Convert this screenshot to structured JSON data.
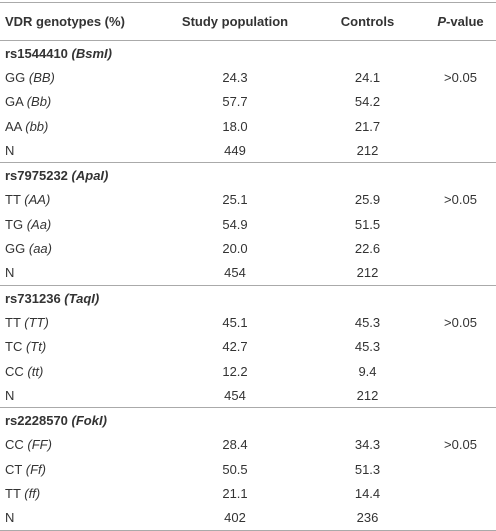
{
  "header": {
    "genotypes": "VDR genotypes (%)",
    "study": "Study population",
    "controls": "Controls",
    "p_italic": "P",
    "p_rest": "-value"
  },
  "groups": [
    {
      "snp": "rs1544410",
      "enzyme": "(BsmI)",
      "rows": [
        {
          "genotype": "GG",
          "alleles": "(BB)",
          "study": "24.3",
          "controls": "24.1",
          "p": ">0.05"
        },
        {
          "genotype": "GA",
          "alleles": "(Bb)",
          "study": "57.7",
          "controls": "54.2"
        },
        {
          "genotype": "AA",
          "alleles": "(bb)",
          "study": "18.0",
          "controls": "21.7"
        },
        {
          "genotype": "N",
          "study": "449",
          "controls": "212"
        }
      ]
    },
    {
      "snp": "rs7975232",
      "enzyme": "(ApaI)",
      "rows": [
        {
          "genotype": "TT",
          "alleles": "(AA)",
          "study": "25.1",
          "controls": "25.9",
          "p": ">0.05"
        },
        {
          "genotype": "TG",
          "alleles": "(Aa)",
          "study": "54.9",
          "controls": "51.5"
        },
        {
          "genotype": "GG",
          "alleles": "(aa)",
          "study": "20.0",
          "controls": "22.6"
        },
        {
          "genotype": "N",
          "study": "454",
          "controls": "212"
        }
      ]
    },
    {
      "snp": "rs731236",
      "enzyme": "(TaqI)",
      "rows": [
        {
          "genotype": "TT",
          "alleles": "(TT)",
          "study": "45.1",
          "controls": "45.3",
          "p": ">0.05"
        },
        {
          "genotype": "TC",
          "alleles": "(Tt)",
          "study": "42.7",
          "controls": "45.3"
        },
        {
          "genotype": "CC",
          "alleles": "(tt)",
          "study": "12.2",
          "controls": "9.4"
        },
        {
          "genotype": "N",
          "study": "454",
          "controls": "212"
        }
      ]
    },
    {
      "snp": "rs2228570",
      "enzyme": "(FokI)",
      "rows": [
        {
          "genotype": "CC",
          "alleles": "(FF)",
          "study": "28.4",
          "controls": "34.3",
          "p": ">0.05"
        },
        {
          "genotype": "CT",
          "alleles": "(Ff)",
          "study": "50.5",
          "controls": "51.3"
        },
        {
          "genotype": "TT",
          "alleles": "(ff)",
          "study": "21.1",
          "controls": "14.4"
        },
        {
          "genotype": "N",
          "study": "402",
          "controls": "236"
        }
      ]
    }
  ]
}
